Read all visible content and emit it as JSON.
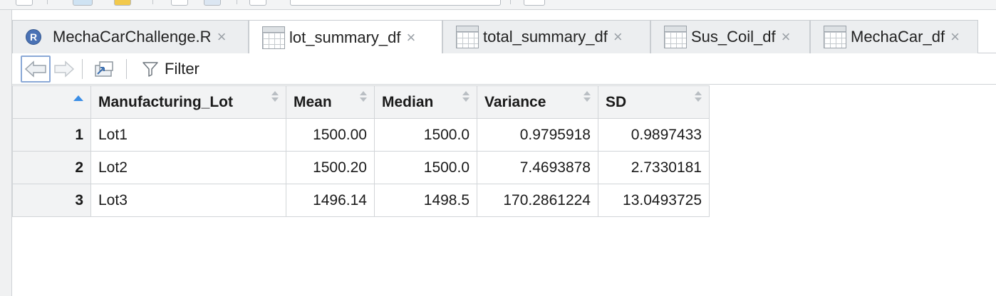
{
  "tabs": [
    {
      "label": "MechaCarChallenge.R",
      "type": "r-script",
      "active": false
    },
    {
      "label": "lot_summary_df",
      "type": "data",
      "active": true
    },
    {
      "label": "total_summary_df",
      "type": "data",
      "active": false
    },
    {
      "label": "Sus_Coil_df",
      "type": "data",
      "active": false
    },
    {
      "label": "MechaCar_df",
      "type": "data",
      "active": false
    }
  ],
  "tab_close_glyph": "×",
  "r_icon_letter": "R",
  "toolbar": {
    "filter_label": "Filter",
    "icons": [
      "back-arrow-icon",
      "forward-arrow-icon",
      "popout-icon",
      "filter-icon"
    ]
  },
  "table": {
    "columns": [
      "Manufacturing_Lot",
      "Mean",
      "Median",
      "Variance",
      "SD"
    ],
    "rows": [
      {
        "index": "1",
        "cells": [
          "Lot1",
          "1500.00",
          "1500.0",
          "0.9795918",
          "0.9897433"
        ]
      },
      {
        "index": "2",
        "cells": [
          "Lot2",
          "1500.20",
          "1500.0",
          "7.4693878",
          "2.7330181"
        ]
      },
      {
        "index": "3",
        "cells": [
          "Lot3",
          "1496.14",
          "1498.5",
          "170.2861224",
          "13.0493725"
        ]
      }
    ]
  },
  "colors": {
    "accent": "#3b8ee6",
    "tab_inactive": "#eceef0",
    "header_bg": "#f2f3f4",
    "r_icon": "#4a72b5"
  }
}
